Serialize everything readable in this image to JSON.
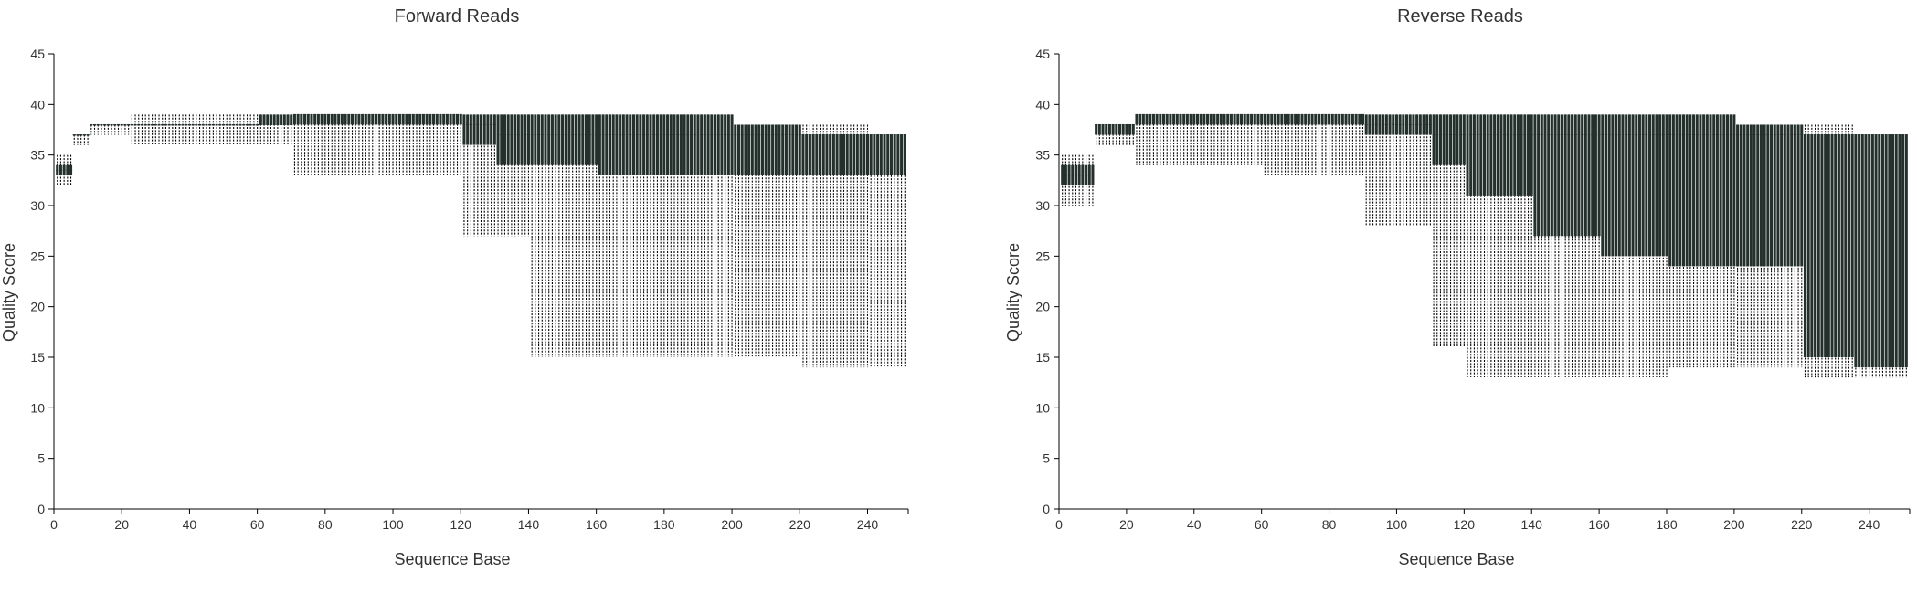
{
  "colors": {
    "box": "#24302c",
    "whisker": "#000000",
    "axis": "#000000",
    "text": "#333333"
  },
  "chart_data": [
    {
      "type": "box",
      "title": "Forward Reads",
      "xlabel": "Sequence Base",
      "ylabel": "Quality Score",
      "xlim": [
        0,
        252
      ],
      "ylim": [
        0,
        45
      ],
      "xticks": [
        0,
        20,
        40,
        60,
        80,
        100,
        120,
        140,
        160,
        180,
        200,
        220,
        240
      ],
      "yticks": [
        0,
        5,
        10,
        15,
        20,
        25,
        30,
        35,
        40,
        45
      ],
      "grid": false,
      "legend": "none",
      "profile": [
        {
          "from": 1,
          "to": 5,
          "whisker_low": 32,
          "q1": 33,
          "median": 33.5,
          "q3": 34,
          "whisker_high": 35
        },
        {
          "from": 6,
          "to": 10,
          "whisker_low": 36,
          "q1": 37,
          "median": 37,
          "q3": 37,
          "whisker_high": 37
        },
        {
          "from": 11,
          "to": 22,
          "whisker_low": 37,
          "q1": 38,
          "median": 38,
          "q3": 38,
          "whisker_high": 38
        },
        {
          "from": 23,
          "to": 60,
          "whisker_low": 36,
          "q1": 38,
          "median": 38,
          "q3": 38,
          "whisker_high": 39
        },
        {
          "from": 61,
          "to": 70,
          "whisker_low": 36,
          "q1": 38,
          "median": 38,
          "q3": 39,
          "whisker_high": 39
        },
        {
          "from": 71,
          "to": 100,
          "whisker_low": 33,
          "q1": 38,
          "median": 39,
          "q3": 39,
          "whisker_high": 39
        },
        {
          "from": 101,
          "to": 120,
          "whisker_low": 33,
          "q1": 38,
          "median": 39,
          "q3": 39,
          "whisker_high": 39
        },
        {
          "from": 121,
          "to": 130,
          "whisker_low": 27,
          "q1": 36,
          "median": 38,
          "q3": 39,
          "whisker_high": 39
        },
        {
          "from": 131,
          "to": 140,
          "whisker_low": 27,
          "q1": 34,
          "median": 37,
          "q3": 39,
          "whisker_high": 39
        },
        {
          "from": 141,
          "to": 160,
          "whisker_low": 15,
          "q1": 34,
          "median": 37,
          "q3": 39,
          "whisker_high": 39
        },
        {
          "from": 161,
          "to": 200,
          "whisker_low": 15,
          "q1": 33,
          "median": 37,
          "q3": 39,
          "whisker_high": 39
        },
        {
          "from": 201,
          "to": 220,
          "whisker_low": 15,
          "q1": 33,
          "median": 37,
          "q3": 38,
          "whisker_high": 38
        },
        {
          "from": 221,
          "to": 240,
          "whisker_low": 14,
          "q1": 33,
          "median": 37,
          "q3": 37,
          "whisker_high": 38
        },
        {
          "from": 241,
          "to": 251,
          "whisker_low": 14,
          "q1": 33,
          "median": 37,
          "q3": 37,
          "whisker_high": 37
        }
      ]
    },
    {
      "type": "box",
      "title": "Reverse Reads",
      "xlabel": "Sequence Base",
      "ylabel": "Quality Score",
      "xlim": [
        0,
        252
      ],
      "ylim": [
        0,
        45
      ],
      "xticks": [
        0,
        20,
        40,
        60,
        80,
        100,
        120,
        140,
        160,
        180,
        200,
        220,
        240
      ],
      "yticks": [
        0,
        5,
        10,
        15,
        20,
        25,
        30,
        35,
        40,
        45
      ],
      "grid": false,
      "legend": "none",
      "profile": [
        {
          "from": 1,
          "to": 10,
          "whisker_low": 30,
          "q1": 32,
          "median": 33,
          "q3": 34,
          "whisker_high": 35
        },
        {
          "from": 11,
          "to": 22,
          "whisker_low": 36,
          "q1": 37,
          "median": 38,
          "q3": 38,
          "whisker_high": 38
        },
        {
          "from": 23,
          "to": 60,
          "whisker_low": 34,
          "q1": 38,
          "median": 39,
          "q3": 39,
          "whisker_high": 39
        },
        {
          "from": 61,
          "to": 90,
          "whisker_low": 33,
          "q1": 38,
          "median": 39,
          "q3": 39,
          "whisker_high": 39
        },
        {
          "from": 91,
          "to": 110,
          "whisker_low": 28,
          "q1": 37,
          "median": 38,
          "q3": 39,
          "whisker_high": 39
        },
        {
          "from": 111,
          "to": 120,
          "whisker_low": 16,
          "q1": 34,
          "median": 37,
          "q3": 39,
          "whisker_high": 39
        },
        {
          "from": 121,
          "to": 140,
          "whisker_low": 13,
          "q1": 31,
          "median": 37,
          "q3": 39,
          "whisker_high": 39
        },
        {
          "from": 141,
          "to": 160,
          "whisker_low": 13,
          "q1": 27,
          "median": 37,
          "q3": 39,
          "whisker_high": 39
        },
        {
          "from": 161,
          "to": 180,
          "whisker_low": 13,
          "q1": 25,
          "median": 37,
          "q3": 39,
          "whisker_high": 39
        },
        {
          "from": 181,
          "to": 200,
          "whisker_low": 14,
          "q1": 24,
          "median": 37,
          "q3": 39,
          "whisker_high": 39
        },
        {
          "from": 201,
          "to": 220,
          "whisker_low": 14,
          "q1": 24,
          "median": 37,
          "q3": 38,
          "whisker_high": 38
        },
        {
          "from": 221,
          "to": 235,
          "whisker_low": 13,
          "q1": 15,
          "median": 37,
          "q3": 37,
          "whisker_high": 38
        },
        {
          "from": 236,
          "to": 251,
          "whisker_low": 13,
          "q1": 14,
          "median": 37,
          "q3": 37,
          "whisker_high": 37
        }
      ]
    }
  ]
}
